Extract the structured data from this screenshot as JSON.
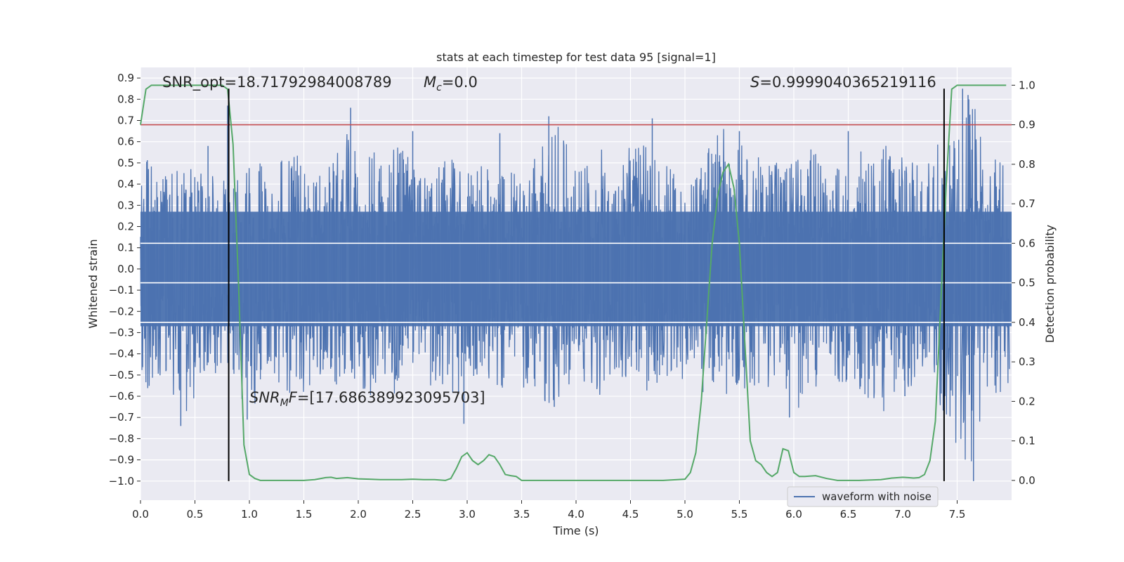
{
  "chart_data": {
    "type": "line",
    "title": "stats at each timestep for test data 95 [signal=1]",
    "xlabel": "Time (s)",
    "ylabel": "Whitened strain",
    "y2label": "Detection probability",
    "xlim": [
      0.0,
      8.0
    ],
    "ylim": [
      -1.09,
      0.95
    ],
    "y2lim": [
      -0.05,
      1.045
    ],
    "grid": true,
    "xticks": [
      0.0,
      0.5,
      1.0,
      1.5,
      2.0,
      2.5,
      3.0,
      3.5,
      4.0,
      4.5,
      5.0,
      5.5,
      6.0,
      6.5,
      7.0,
      7.5
    ],
    "xtick_labels": [
      "0.0",
      "0.5",
      "1.0",
      "1.5",
      "2.0",
      "2.5",
      "3.0",
      "3.5",
      "4.0",
      "4.5",
      "5.0",
      "5.5",
      "6.0",
      "6.5",
      "7.0",
      "7.5"
    ],
    "yticks": [
      0.9,
      0.8,
      0.7,
      0.6,
      0.5,
      0.4,
      0.3,
      0.2,
      0.1,
      0.0,
      -0.1,
      -0.2,
      -0.3,
      -0.4,
      -0.5,
      -0.6,
      -0.7,
      -0.8,
      -0.9,
      -1.0
    ],
    "ytick_labels": [
      "0.9",
      "0.8",
      "0.7",
      "0.6",
      "0.5",
      "0.4",
      "0.3",
      "0.2",
      "0.1",
      "0.0",
      "−0.1",
      "−0.2",
      "−0.3",
      "−0.4",
      "−0.5",
      "−0.6",
      "−0.7",
      "−0.8",
      "−0.9",
      "−1.0"
    ],
    "y2ticks": [
      1.0,
      0.9,
      0.8,
      0.7,
      0.6,
      0.5,
      0.4,
      0.3,
      0.2,
      0.1,
      0.0
    ],
    "y2tick_labels": [
      "1.0",
      "0.9",
      "0.8",
      "0.7",
      "0.6",
      "0.5",
      "0.4",
      "0.3",
      "0.2",
      "0.1",
      "0.0"
    ],
    "annotations": {
      "snr_opt": "SNR_opt=18.71792984008789",
      "mc_symbol": "M",
      "mc_sub": "c",
      "mc_value": "=0.0",
      "s_symbol": "S",
      "s_value": "=0.9999040365219116",
      "snrmf_symbol": "SNR",
      "snrmf_sub": "M",
      "snrmf_mid": "F",
      "snrmf_value": "=[17.686389923095703]"
    },
    "threshold": {
      "value": 0.9,
      "axis": "y2",
      "color": "#c44e52"
    },
    "vlines": {
      "x": [
        0.81,
        7.38
      ],
      "ymin": -1.0,
      "ymax": 0.85,
      "color": "#000000"
    },
    "legend": {
      "label": "waveform with noise",
      "position": "lower-right"
    },
    "series": [
      {
        "name": "waveform with noise",
        "axis": "y",
        "color": "#4c72b0",
        "envelope": {
          "x": [
            0.0,
            0.2,
            0.4,
            0.6,
            0.8,
            1.0,
            1.2,
            1.4,
            1.6,
            1.8,
            2.0,
            2.2,
            2.4,
            2.6,
            2.8,
            3.0,
            3.2,
            3.4,
            3.6,
            3.8,
            4.0,
            4.2,
            4.4,
            4.6,
            4.8,
            5.0,
            5.2,
            5.4,
            5.6,
            5.8,
            6.0,
            6.2,
            6.4,
            6.6,
            6.8,
            7.0,
            7.2,
            7.4,
            7.6,
            7.8,
            8.0
          ],
          "upper": [
            0.55,
            0.45,
            0.47,
            0.52,
            0.42,
            0.5,
            0.5,
            0.58,
            0.45,
            0.6,
            0.76,
            0.5,
            0.6,
            0.5,
            0.55,
            0.5,
            0.5,
            0.5,
            0.55,
            0.73,
            0.5,
            0.6,
            0.55,
            0.6,
            0.5,
            0.45,
            0.57,
            0.7,
            0.55,
            0.5,
            0.52,
            0.58,
            0.5,
            0.55,
            0.6,
            0.55,
            0.5,
            0.65,
            0.85,
            0.55,
            0.5
          ],
          "lower": [
            -0.6,
            -0.5,
            -0.74,
            -0.55,
            -0.45,
            -0.7,
            -0.5,
            -0.62,
            -0.55,
            -0.6,
            -0.55,
            -0.65,
            -0.6,
            -0.55,
            -0.58,
            -0.6,
            -0.55,
            -0.58,
            -0.6,
            -0.65,
            -0.55,
            -0.6,
            -0.58,
            -0.6,
            -0.55,
            -0.58,
            -0.62,
            -0.6,
            -0.58,
            -0.63,
            -0.7,
            -0.6,
            -0.55,
            -0.6,
            -0.72,
            -0.55,
            -0.6,
            -0.72,
            -1.0,
            -0.6,
            -0.6
          ]
        },
        "spikes": {
          "x": [
            0.37,
            0.62,
            0.8,
            0.98,
            1.93,
            2.5,
            2.97,
            3.3,
            3.75,
            3.8,
            4.7,
            5.5,
            5.96,
            6.5,
            7.02,
            7.55,
            7.6,
            7.65
          ],
          "y": [
            -0.74,
            0.58,
            0.77,
            -0.71,
            0.76,
            0.65,
            -0.73,
            0.64,
            0.72,
            -0.65,
            0.71,
            0.65,
            -0.7,
            0.65,
            -0.6,
            0.85,
            0.82,
            -1.0
          ]
        }
      },
      {
        "name": "detection probability",
        "axis": "y2",
        "color": "#55a868",
        "x": [
          0.0,
          0.05,
          0.1,
          0.2,
          0.3,
          0.4,
          0.5,
          0.6,
          0.7,
          0.75,
          0.8,
          0.85,
          0.9,
          0.95,
          1.0,
          1.05,
          1.1,
          1.2,
          1.3,
          1.4,
          1.5,
          1.6,
          1.7,
          1.75,
          1.8,
          1.9,
          2.0,
          2.1,
          2.2,
          2.4,
          2.5,
          2.6,
          2.7,
          2.8,
          2.85,
          2.9,
          2.95,
          3.0,
          3.05,
          3.1,
          3.15,
          3.2,
          3.25,
          3.3,
          3.35,
          3.4,
          3.45,
          3.5,
          3.6,
          3.8,
          4.0,
          4.2,
          4.4,
          4.6,
          4.8,
          5.0,
          5.05,
          5.1,
          5.15,
          5.2,
          5.25,
          5.3,
          5.35,
          5.4,
          5.45,
          5.5,
          5.55,
          5.6,
          5.65,
          5.7,
          5.75,
          5.8,
          5.85,
          5.9,
          5.95,
          6.0,
          6.05,
          6.1,
          6.2,
          6.3,
          6.4,
          6.6,
          6.8,
          6.9,
          7.0,
          7.05,
          7.1,
          7.15,
          7.2,
          7.25,
          7.3,
          7.35,
          7.4,
          7.45,
          7.5,
          7.6,
          7.8,
          7.95
        ],
        "y": [
          0.9,
          0.99,
          1.0,
          1.0,
          1.0,
          1.0,
          1.0,
          1.0,
          1.0,
          1.0,
          0.99,
          0.85,
          0.5,
          0.09,
          0.015,
          0.005,
          0.0,
          0.0,
          0.0,
          0.0,
          0.0,
          0.002,
          0.007,
          0.008,
          0.005,
          0.007,
          0.004,
          0.003,
          0.002,
          0.002,
          0.003,
          0.002,
          0.002,
          0.0,
          0.005,
          0.03,
          0.06,
          0.07,
          0.05,
          0.04,
          0.05,
          0.065,
          0.06,
          0.04,
          0.015,
          0.012,
          0.01,
          0.0,
          0.0,
          0.0,
          0.0,
          0.0,
          0.0,
          0.0,
          0.0,
          0.003,
          0.02,
          0.07,
          0.2,
          0.4,
          0.6,
          0.72,
          0.78,
          0.8,
          0.74,
          0.6,
          0.35,
          0.1,
          0.05,
          0.04,
          0.02,
          0.01,
          0.02,
          0.08,
          0.075,
          0.02,
          0.01,
          0.01,
          0.012,
          0.005,
          0.0,
          0.0,
          0.002,
          0.006,
          0.008,
          0.007,
          0.006,
          0.007,
          0.015,
          0.05,
          0.15,
          0.45,
          0.75,
          0.99,
          1.0,
          1.0,
          1.0,
          1.0
        ]
      }
    ]
  }
}
